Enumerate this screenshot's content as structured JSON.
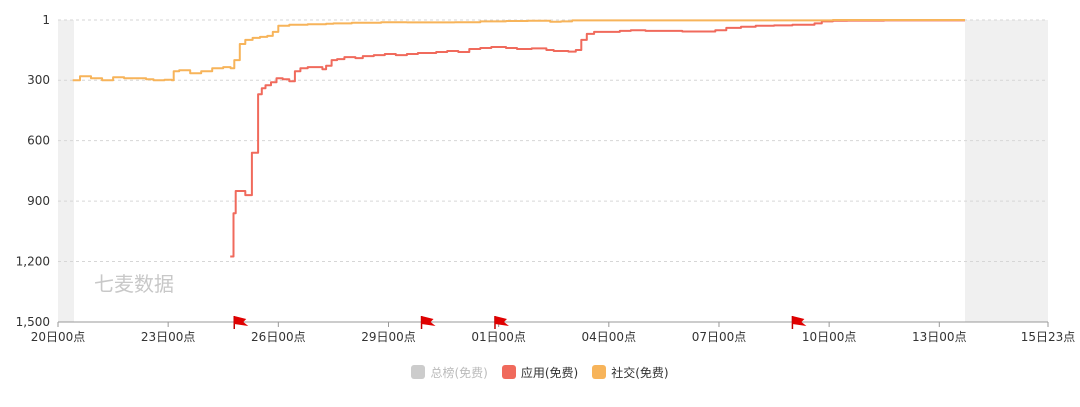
{
  "chart_data": {
    "type": "line",
    "title": "",
    "xlabel": "",
    "ylabel": "",
    "y_inverted": true,
    "ylim": [
      1,
      1500
    ],
    "yticks": [
      {
        "value": 1,
        "label": "1"
      },
      {
        "value": 300,
        "label": "300"
      },
      {
        "value": 600,
        "label": "600"
      },
      {
        "value": 900,
        "label": "900"
      },
      {
        "value": 1200,
        "label": "1,200"
      },
      {
        "value": 1500,
        "label": "1,500"
      }
    ],
    "xlim": [
      0,
      26.96
    ],
    "xticks": [
      {
        "value": 0,
        "label": "20日00点"
      },
      {
        "value": 3,
        "label": "23日00点"
      },
      {
        "value": 6,
        "label": "26日00点"
      },
      {
        "value": 9,
        "label": "29日00点"
      },
      {
        "value": 12,
        "label": "01日00点"
      },
      {
        "value": 15,
        "label": "04日00点"
      },
      {
        "value": 18,
        "label": "07日00点"
      },
      {
        "value": 21,
        "label": "10日00点"
      },
      {
        "value": 24,
        "label": "13日00点"
      },
      {
        "value": 26.96,
        "label": "15日23点"
      }
    ],
    "data_end": 24.7,
    "grid": true,
    "watermark": "七麦数据",
    "flags_x": [
      4.8,
      9.9,
      11.9,
      20.0
    ],
    "legend_position": "bottom-center",
    "series": [
      {
        "name": "总榜(免费)",
        "color": "#cccccc",
        "active": false,
        "points": []
      },
      {
        "name": "应用(免费)",
        "color": "#f06a5c",
        "active": true,
        "points": [
          [
            4.69,
            1175
          ],
          [
            4.76,
            1175
          ],
          [
            4.78,
            960
          ],
          [
            4.84,
            850
          ],
          [
            5.05,
            850
          ],
          [
            5.1,
            870
          ],
          [
            5.25,
            870
          ],
          [
            5.28,
            660
          ],
          [
            5.36,
            660
          ],
          [
            5.45,
            370
          ],
          [
            5.55,
            340
          ],
          [
            5.65,
            325
          ],
          [
            5.8,
            310
          ],
          [
            5.95,
            290
          ],
          [
            6.12,
            295
          ],
          [
            6.3,
            305
          ],
          [
            6.45,
            255
          ],
          [
            6.6,
            240
          ],
          [
            6.8,
            235
          ],
          [
            7.1,
            235
          ],
          [
            7.2,
            245
          ],
          [
            7.3,
            228
          ],
          [
            7.45,
            200
          ],
          [
            7.6,
            195
          ],
          [
            7.8,
            185
          ],
          [
            8.1,
            190
          ],
          [
            8.3,
            180
          ],
          [
            8.6,
            175
          ],
          [
            8.9,
            170
          ],
          [
            9.2,
            175
          ],
          [
            9.5,
            170
          ],
          [
            9.8,
            165
          ],
          [
            10.3,
            160
          ],
          [
            10.6,
            155
          ],
          [
            10.9,
            160
          ],
          [
            11.2,
            145
          ],
          [
            11.5,
            140
          ],
          [
            11.8,
            135
          ],
          [
            12.2,
            140
          ],
          [
            12.5,
            145
          ],
          [
            12.9,
            142
          ],
          [
            13.3,
            150
          ],
          [
            13.5,
            155
          ],
          [
            13.9,
            158
          ],
          [
            14.1,
            150
          ],
          [
            14.25,
            100
          ],
          [
            14.4,
            70
          ],
          [
            14.6,
            60
          ],
          [
            14.9,
            60
          ],
          [
            15.3,
            55
          ],
          [
            15.6,
            52
          ],
          [
            16.0,
            55
          ],
          [
            16.5,
            55
          ],
          [
            17.0,
            58
          ],
          [
            17.5,
            58
          ],
          [
            17.9,
            52
          ],
          [
            18.2,
            40
          ],
          [
            18.6,
            35
          ],
          [
            19.0,
            30
          ],
          [
            19.5,
            28
          ],
          [
            20.0,
            25
          ],
          [
            20.4,
            25
          ],
          [
            20.6,
            18
          ],
          [
            20.8,
            8
          ],
          [
            21.1,
            5
          ],
          [
            21.5,
            4
          ],
          [
            22.5,
            3
          ],
          [
            23.5,
            3
          ],
          [
            24.7,
            3
          ]
        ]
      },
      {
        "name": "社交(免费)",
        "color": "#f7b45a",
        "active": true,
        "points": [
          [
            0.4,
            300
          ],
          [
            0.6,
            280
          ],
          [
            0.9,
            290
          ],
          [
            1.2,
            300
          ],
          [
            1.5,
            285
          ],
          [
            1.8,
            290
          ],
          [
            2.1,
            290
          ],
          [
            2.4,
            295
          ],
          [
            2.6,
            300
          ],
          [
            2.9,
            298
          ],
          [
            3.1,
            300
          ],
          [
            3.15,
            255
          ],
          [
            3.3,
            250
          ],
          [
            3.6,
            265
          ],
          [
            3.9,
            255
          ],
          [
            4.2,
            240
          ],
          [
            4.5,
            235
          ],
          [
            4.7,
            240
          ],
          [
            4.8,
            200
          ],
          [
            4.95,
            120
          ],
          [
            5.1,
            100
          ],
          [
            5.3,
            90
          ],
          [
            5.5,
            85
          ],
          [
            5.7,
            80
          ],
          [
            5.85,
            60
          ],
          [
            6.0,
            30
          ],
          [
            6.3,
            25
          ],
          [
            6.8,
            22
          ],
          [
            7.3,
            20
          ],
          [
            7.5,
            18
          ],
          [
            8.0,
            15
          ],
          [
            8.8,
            12
          ],
          [
            9.5,
            13
          ],
          [
            10.3,
            13
          ],
          [
            10.8,
            12
          ],
          [
            11.5,
            8
          ],
          [
            12.2,
            6
          ],
          [
            12.8,
            5
          ],
          [
            13.4,
            10
          ],
          [
            13.7,
            8
          ],
          [
            14.0,
            3
          ],
          [
            15.5,
            3
          ],
          [
            17.0,
            3
          ],
          [
            19.0,
            3
          ],
          [
            20.7,
            3
          ],
          [
            21.1,
            1
          ],
          [
            22.5,
            1
          ],
          [
            23.5,
            1
          ],
          [
            24.7,
            1
          ]
        ]
      }
    ]
  }
}
